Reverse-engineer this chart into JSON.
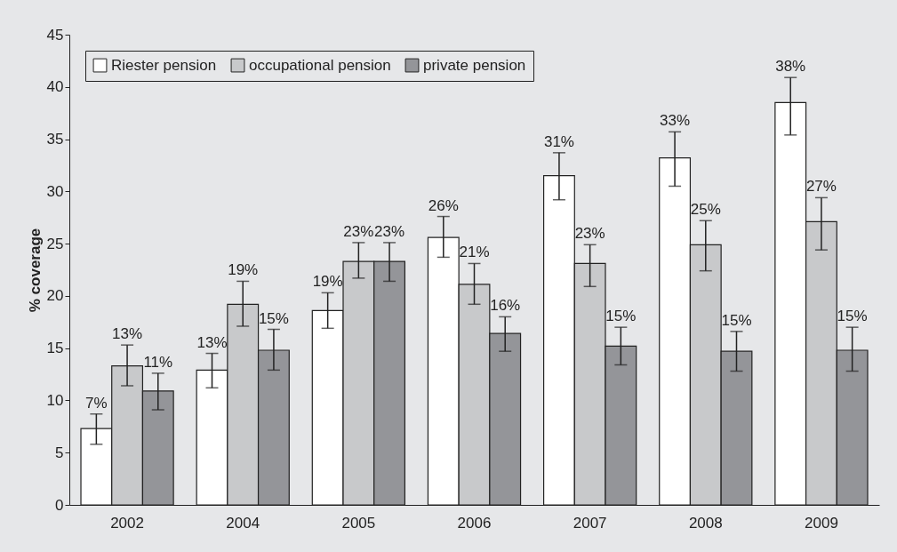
{
  "chart_data": {
    "type": "bar",
    "ylabel": "% coverage",
    "categories": [
      "2002",
      "2004",
      "2005",
      "2006",
      "2007",
      "2008",
      "2009"
    ],
    "series": [
      {
        "name": "Riester pension",
        "color": "#ffffff",
        "values": [
          7.3,
          12.9,
          18.6,
          25.6,
          31.5,
          33.2,
          38.5
        ],
        "errors": [
          [
            5.8,
            8.7
          ],
          [
            11.2,
            14.5
          ],
          [
            16.9,
            20.3
          ],
          [
            23.7,
            27.6
          ],
          [
            29.2,
            33.7
          ],
          [
            30.5,
            35.7
          ],
          [
            35.4,
            40.9
          ]
        ],
        "value_labels": [
          "7%",
          "13%",
          "19%",
          "26%",
          "31%",
          "33%",
          "38%"
        ]
      },
      {
        "name": "occupational pension",
        "color": "#c8c9cb",
        "values": [
          13.3,
          19.2,
          23.3,
          21.1,
          23.1,
          24.9,
          27.1
        ],
        "errors": [
          [
            11.4,
            15.3
          ],
          [
            17.1,
            21.4
          ],
          [
            21.7,
            25.1
          ],
          [
            19.2,
            23.1
          ],
          [
            20.9,
            24.9
          ],
          [
            22.4,
            27.2
          ],
          [
            24.4,
            29.4
          ]
        ],
        "value_labels": [
          "13%",
          "19%",
          "23%",
          "21%",
          "23%",
          "25%",
          "27%"
        ]
      },
      {
        "name": "private pension",
        "color": "#949599",
        "values": [
          10.9,
          14.8,
          23.3,
          16.4,
          15.2,
          14.7,
          14.8
        ],
        "errors": [
          [
            9.1,
            12.6
          ],
          [
            12.9,
            16.8
          ],
          [
            21.4,
            25.1
          ],
          [
            14.7,
            18.0
          ],
          [
            13.4,
            17.0
          ],
          [
            12.8,
            16.6
          ],
          [
            12.8,
            17.0
          ]
        ],
        "value_labels": [
          "11%",
          "15%",
          "23%",
          "16%",
          "15%",
          "15%",
          "15%"
        ]
      }
    ],
    "ylim": [
      0,
      45
    ],
    "yticks": [
      0,
      5,
      10,
      15,
      20,
      25,
      30,
      35,
      40,
      45
    ],
    "legend": "top left",
    "grid": false
  }
}
